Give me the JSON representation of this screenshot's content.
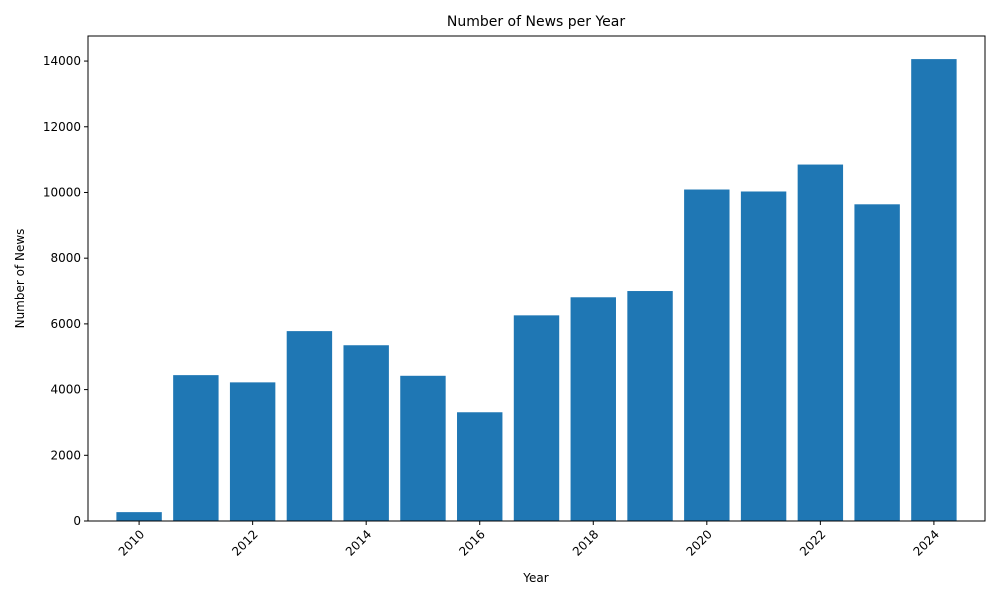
{
  "chart_data": {
    "type": "bar",
    "title": "Number of News per Year",
    "xlabel": "Year",
    "ylabel": "Number of News",
    "x": [
      2010,
      2011,
      2012,
      2013,
      2014,
      2015,
      2016,
      2017,
      2018,
      2019,
      2020,
      2021,
      2022,
      2023,
      2024
    ],
    "values": [
      270,
      4440,
      4220,
      5780,
      5350,
      4420,
      3310,
      6260,
      6810,
      7000,
      10090,
      10030,
      10850,
      9640,
      14060
    ],
    "xticks": [
      2010,
      2012,
      2014,
      2016,
      2018,
      2020,
      2022,
      2024
    ],
    "xlim": [
      2009.1,
      2024.9
    ],
    "yticks": [
      0,
      2000,
      4000,
      6000,
      8000,
      10000,
      12000,
      14000
    ],
    "ylim": [
      0,
      14763
    ],
    "grid": false,
    "legend": "none",
    "bar_color": "#1f77b4",
    "xtick_rotation": 45
  }
}
